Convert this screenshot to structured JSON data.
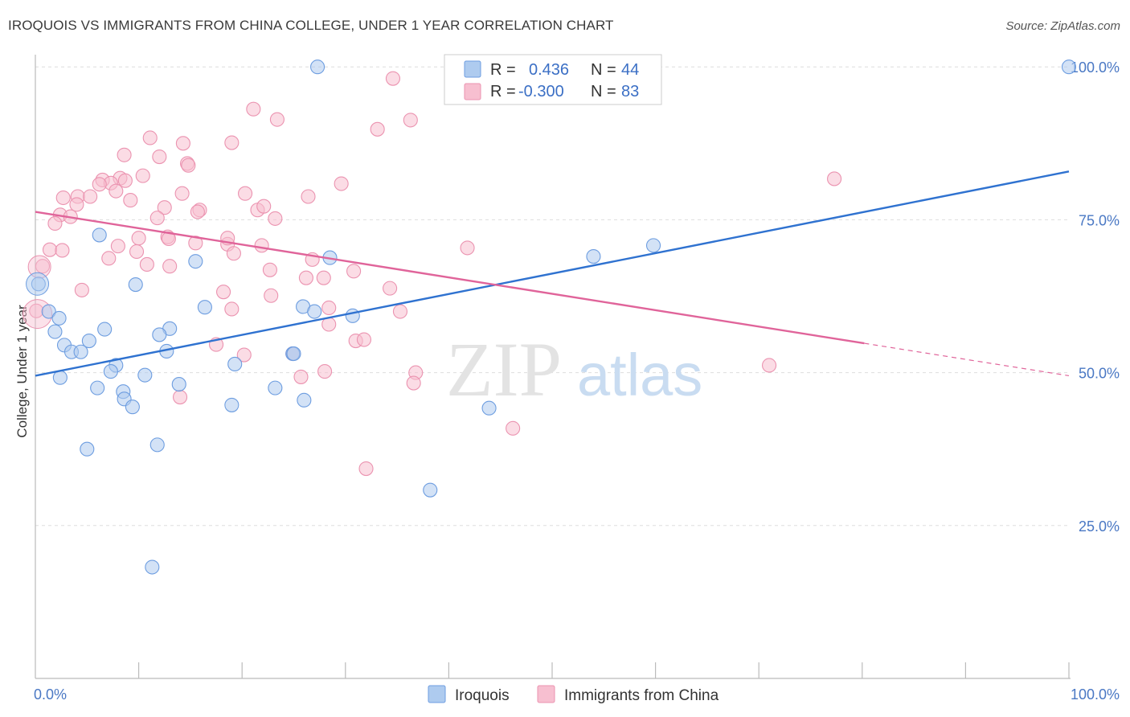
{
  "title": "IROQUOIS VS IMMIGRANTS FROM CHINA COLLEGE, UNDER 1 YEAR CORRELATION CHART",
  "source": "Source: ZipAtlas.com",
  "watermark": {
    "zip": "ZIP",
    "atlas": "atlas"
  },
  "colors": {
    "blue_fill": "#aecbef",
    "blue_stroke": "#6d9de0",
    "blue_line": "#2f72d0",
    "pink_fill": "#f7bfd0",
    "pink_stroke": "#eb93b0",
    "pink_line": "#e0649a",
    "tick_text": "#4a78c4",
    "grid": "#dddddd"
  },
  "legend": {
    "rows": [
      {
        "r_label": "R =",
        "r_value": "0.436",
        "n_label": "N =",
        "n_value": "44",
        "series": "blue"
      },
      {
        "r_label": "R =",
        "r_value": "-0.300",
        "n_label": "N =",
        "n_value": "83",
        "series": "pink"
      }
    ]
  },
  "bottom_legend": [
    {
      "label": "Iroquois",
      "series": "blue"
    },
    {
      "label": "Immigrants from China",
      "series": "pink"
    }
  ],
  "chart_data": {
    "type": "scatter",
    "title": "IROQUOIS VS IMMIGRANTS FROM CHINA COLLEGE, UNDER 1 YEAR CORRELATION CHART",
    "xlabel": "",
    "ylabel": "College, Under 1 year",
    "xlim": [
      0,
      100
    ],
    "ylim": [
      0,
      102
    ],
    "x_tick_labels": [
      {
        "value": 0,
        "label": "0.0%"
      },
      {
        "value": 100,
        "label": "100.0%"
      }
    ],
    "y_tick_labels": [
      {
        "value": 25,
        "label": "25.0%"
      },
      {
        "value": 50,
        "label": "50.0%"
      },
      {
        "value": 75,
        "label": "75.0%"
      },
      {
        "value": 100,
        "label": "100.0%"
      }
    ],
    "gridlines": [
      25,
      50,
      75,
      100
    ],
    "series": [
      {
        "name": "Iroquois",
        "color": "blue",
        "points": [
          [
            27.3,
            100
          ],
          [
            100,
            100
          ],
          [
            6.2,
            72.5
          ],
          [
            15.5,
            68.2
          ],
          [
            28.5,
            68.8
          ],
          [
            54,
            69
          ],
          [
            59.8,
            70.8
          ],
          [
            9.7,
            64.4
          ],
          [
            0.3,
            64.5
          ],
          [
            16.4,
            60.7
          ],
          [
            25.9,
            60.8
          ],
          [
            27,
            60
          ],
          [
            1.3,
            60
          ],
          [
            2.3,
            58.9
          ],
          [
            30.7,
            59.3
          ],
          [
            1.9,
            56.7
          ],
          [
            6.7,
            57.1
          ],
          [
            13,
            57.2
          ],
          [
            12,
            56.2
          ],
          [
            5.2,
            55.2
          ],
          [
            2.8,
            54.5
          ],
          [
            3.5,
            53.4
          ],
          [
            4.4,
            53.4
          ],
          [
            12.7,
            53.5
          ],
          [
            24.9,
            53.1
          ],
          [
            19.3,
            51.4
          ],
          [
            7.8,
            51.2
          ],
          [
            7.3,
            50.2
          ],
          [
            2.4,
            49.2
          ],
          [
            10.6,
            49.6
          ],
          [
            13.9,
            48.1
          ],
          [
            23.2,
            47.5
          ],
          [
            6,
            47.5
          ],
          [
            8.5,
            46.9
          ],
          [
            26,
            45.5
          ],
          [
            8.6,
            45.7
          ],
          [
            19,
            44.7
          ],
          [
            9.4,
            44.4
          ],
          [
            43.9,
            44.2
          ],
          [
            11.8,
            38.2
          ],
          [
            5,
            37.5
          ],
          [
            38.2,
            30.8
          ],
          [
            11.3,
            18.2
          ],
          [
            25,
            53.1
          ]
        ]
      },
      {
        "name": "Immigrants from China",
        "color": "pink",
        "points": [
          [
            34.6,
            98.1
          ],
          [
            21.1,
            93.1
          ],
          [
            23.4,
            91.4
          ],
          [
            36.3,
            91.3
          ],
          [
            33.1,
            89.8
          ],
          [
            11.1,
            88.4
          ],
          [
            14.3,
            87.5
          ],
          [
            19,
            87.6
          ],
          [
            8.6,
            85.6
          ],
          [
            12,
            85.3
          ],
          [
            14.7,
            84.2
          ],
          [
            14.8,
            83.9
          ],
          [
            10.4,
            82.2
          ],
          [
            6.5,
            81.5
          ],
          [
            8.2,
            81.8
          ],
          [
            8.7,
            81.4
          ],
          [
            29.6,
            80.9
          ],
          [
            77.3,
            81.7
          ],
          [
            7.3,
            81
          ],
          [
            6.2,
            80.8
          ],
          [
            7.8,
            79.7
          ],
          [
            14.2,
            79.3
          ],
          [
            20.3,
            79.3
          ],
          [
            26.4,
            78.8
          ],
          [
            2.7,
            78.6
          ],
          [
            4.1,
            78.8
          ],
          [
            5.3,
            78.8
          ],
          [
            9.2,
            78.2
          ],
          [
            4,
            77.5
          ],
          [
            12.5,
            77
          ],
          [
            15.9,
            76.6
          ],
          [
            21.5,
            76.6
          ],
          [
            22.1,
            77.2
          ],
          [
            15.7,
            76.3
          ],
          [
            2.4,
            75.8
          ],
          [
            3.4,
            75.5
          ],
          [
            23.2,
            75.2
          ],
          [
            1.9,
            74.4
          ],
          [
            10,
            72
          ],
          [
            12.8,
            72.2
          ],
          [
            12.9,
            71.9
          ],
          [
            15.5,
            71.2
          ],
          [
            18.6,
            71
          ],
          [
            21.9,
            70.8
          ],
          [
            41.8,
            70.4
          ],
          [
            1.4,
            70.1
          ],
          [
            2.6,
            70
          ],
          [
            9.8,
            69.8
          ],
          [
            7.1,
            68.7
          ],
          [
            26.8,
            68.5
          ],
          [
            10.8,
            67.7
          ],
          [
            13,
            67.4
          ],
          [
            0.7,
            67.4
          ],
          [
            22.7,
            66.8
          ],
          [
            30.8,
            66.6
          ],
          [
            26.2,
            65.5
          ],
          [
            27.9,
            65.5
          ],
          [
            34.3,
            63.8
          ],
          [
            4.5,
            63.5
          ],
          [
            18.2,
            63.2
          ],
          [
            22.8,
            62.6
          ],
          [
            0.1,
            60.1
          ],
          [
            19,
            60.4
          ],
          [
            28.4,
            60.6
          ],
          [
            35.3,
            60
          ],
          [
            28.4,
            57.9
          ],
          [
            31,
            55.2
          ],
          [
            31.8,
            55.4
          ],
          [
            17.5,
            54.6
          ],
          [
            20.2,
            52.9
          ],
          [
            24.9,
            53.1
          ],
          [
            71,
            51.2
          ],
          [
            28,
            50.2
          ],
          [
            36.8,
            50
          ],
          [
            25.7,
            49.3
          ],
          [
            36.6,
            48.3
          ],
          [
            14,
            46
          ],
          [
            46.2,
            40.9
          ],
          [
            32,
            34.3
          ],
          [
            18.6,
            72
          ],
          [
            8,
            70.7
          ],
          [
            19.2,
            69.5
          ],
          [
            11.8,
            75.3
          ]
        ]
      }
    ],
    "trendlines": [
      {
        "series": "Iroquois",
        "x0": 0,
        "y0": 49.5,
        "x1": 100,
        "y1": 82.9,
        "style": "solid"
      },
      {
        "series": "Immigrants from China",
        "x0": 0,
        "y0": 76.3,
        "x1": 80.2,
        "y1": 54.8,
        "style": "solid"
      },
      {
        "series": "Immigrants from China",
        "x0": 80.2,
        "y0": 54.8,
        "x1": 100,
        "y1": 49.5,
        "style": "dashed"
      }
    ]
  }
}
